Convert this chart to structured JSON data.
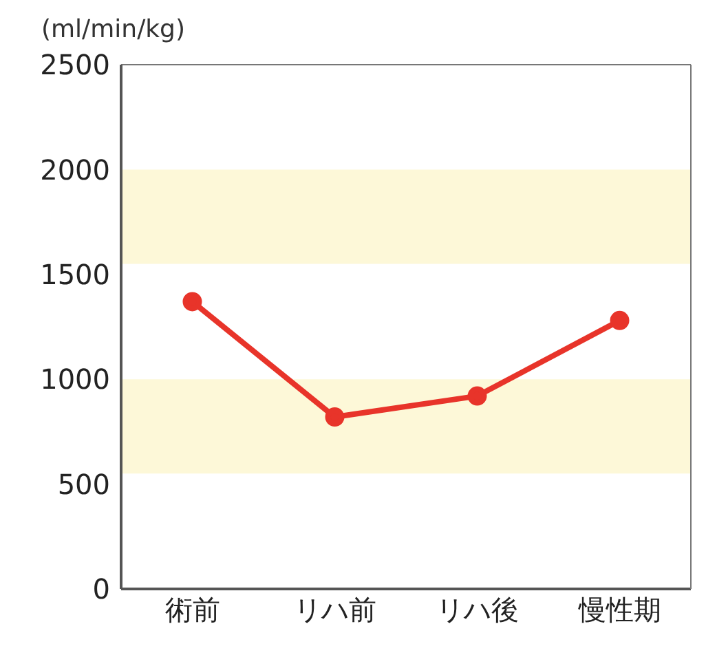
{
  "chart_data": {
    "type": "line",
    "ylabel": "(ml/min/kg)",
    "categories": [
      "術前",
      "リハ前",
      "リハ後",
      "慢性期"
    ],
    "series": [
      {
        "color": "#e8342a",
        "values": [
          1370,
          820,
          920,
          1280
        ]
      }
    ],
    "ylim": [
      0,
      2500
    ],
    "yticks": [
      0,
      500,
      1000,
      1500,
      2000,
      2500
    ],
    "bands": [
      {
        "axis": "y",
        "from": 550,
        "to": 1000,
        "color": "#fdf8d8"
      },
      {
        "axis": "y",
        "from": 1550,
        "to": 2000,
        "color": "#fdf8d8"
      }
    ],
    "marker": "circle",
    "line_style": "solid",
    "grid": false,
    "legend": false
  }
}
